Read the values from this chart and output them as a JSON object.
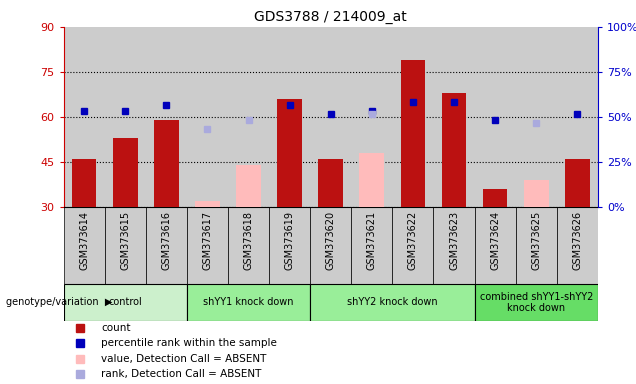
{
  "title": "GDS3788 / 214009_at",
  "samples": [
    "GSM373614",
    "GSM373615",
    "GSM373616",
    "GSM373617",
    "GSM373618",
    "GSM373619",
    "GSM373620",
    "GSM373621",
    "GSM373622",
    "GSM373623",
    "GSM373624",
    "GSM373625",
    "GSM373626"
  ],
  "red_bars": [
    46,
    53,
    59,
    null,
    null,
    66,
    46,
    null,
    79,
    68,
    36,
    null,
    46
  ],
  "pink_bars": [
    null,
    null,
    null,
    32,
    44,
    null,
    null,
    48,
    null,
    null,
    null,
    39,
    null
  ],
  "blue_squares": [
    62,
    62,
    64,
    null,
    null,
    64,
    61,
    62,
    65,
    65,
    59,
    null,
    61
  ],
  "lavender_squares": [
    null,
    null,
    null,
    56,
    59,
    null,
    null,
    61,
    null,
    null,
    null,
    58,
    null
  ],
  "ylim_left": [
    30,
    90
  ],
  "ylim_right": [
    0,
    100
  ],
  "yticks_left": [
    30,
    45,
    60,
    75,
    90
  ],
  "yticks_right": [
    0,
    25,
    50,
    75,
    100
  ],
  "group_starts": [
    0,
    3,
    6,
    10
  ],
  "group_ends": [
    2,
    5,
    9,
    12
  ],
  "group_labels": [
    "control",
    "shYY1 knock down",
    "shYY2 knock down",
    "combined shYY1-shYY2\nknock down"
  ],
  "group_colors": [
    "#ccf0cc",
    "#99ee99",
    "#99ee99",
    "#66dd66"
  ],
  "red_color": "#bb1111",
  "pink_color": "#ffbbbb",
  "blue_color": "#0000bb",
  "lavender_color": "#aaaadd",
  "bg_color": "#cccccc",
  "left_axis_color": "#cc0000",
  "right_axis_color": "#0000cc",
  "white_bg": "#ffffff"
}
